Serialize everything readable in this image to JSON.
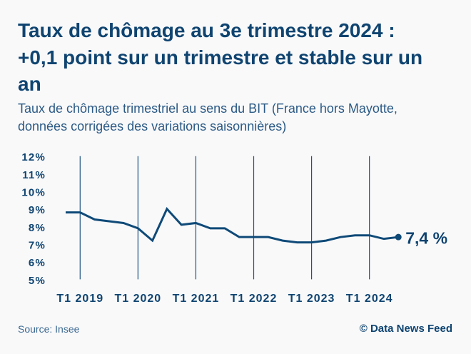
{
  "colors": {
    "primary": "#0f4a78",
    "title": "#0f4470",
    "subtitle": "#2b5a85",
    "source": "#3a6890",
    "background": "#f9f9fa"
  },
  "footer": {
    "source": "Source: Insee",
    "credit": "© Data News Feed"
  },
  "chart_data": {
    "type": "line",
    "title": "Taux de chômage au 3e trimestre 2024 : +0,1 point sur un trimestre et stable sur un an",
    "subtitle": "Taux de chômage trimestriel au sens du BIT (France hors Mayotte, données corrigées des variations saisonnières)",
    "xlabel": "",
    "ylabel": "",
    "x": [
      "T4 2018",
      "T1 2019",
      "T2 2019",
      "T3 2019",
      "T4 2019",
      "T1 2020",
      "T2 2020",
      "T3 2020",
      "T4 2020",
      "T1 2021",
      "T2 2021",
      "T3 2021",
      "T4 2021",
      "T1 2022",
      "T2 2022",
      "T3 2022",
      "T4 2022",
      "T1 2023",
      "T2 2023",
      "T3 2023",
      "T4 2023",
      "T1 2024",
      "T2 2024",
      "T3 2024"
    ],
    "series": [
      {
        "name": "Taux de chômage (%)",
        "values": [
          8.8,
          8.8,
          8.4,
          8.3,
          8.2,
          7.9,
          7.2,
          9.0,
          8.1,
          8.2,
          7.9,
          7.9,
          7.4,
          7.4,
          7.4,
          7.2,
          7.1,
          7.1,
          7.2,
          7.4,
          7.5,
          7.5,
          7.3,
          7.4
        ]
      }
    ],
    "xticks": [
      "T1 2019",
      "T1 2020",
      "T1 2021",
      "T1 2022",
      "T1 2023",
      "T1 2024"
    ],
    "yticks": [
      12,
      11,
      10,
      9,
      8,
      7,
      6,
      5
    ],
    "ytick_labels": [
      "12%",
      "11%",
      "10%",
      "9%",
      "8%",
      "7%",
      "6%",
      "5%"
    ],
    "ylim": [
      5,
      12
    ],
    "grid": "vertical lines at each T1 quarter",
    "legend": "none",
    "annotations": [
      {
        "text": "7,4 %",
        "at": "T3 2024",
        "value": 7.4,
        "marker": "dot",
        "placement": "right of last point"
      }
    ]
  }
}
